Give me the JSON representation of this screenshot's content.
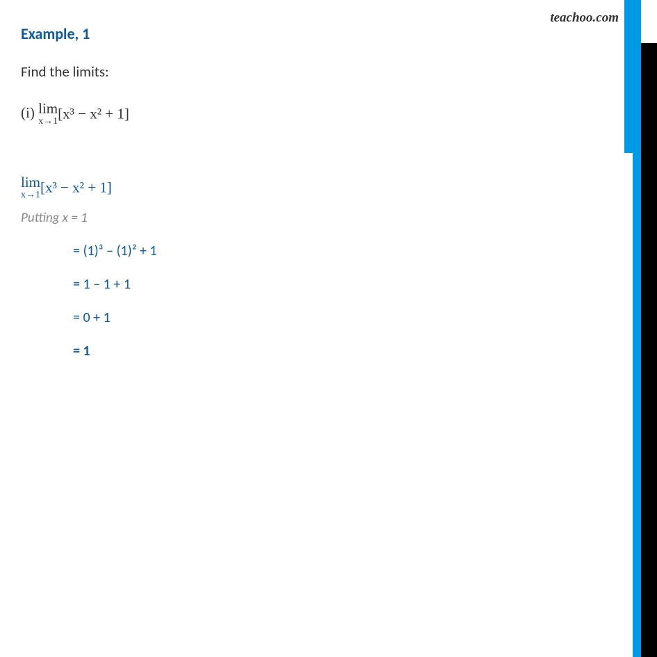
{
  "watermark": "teachoo.com",
  "heading": "Example,  1",
  "subheading": "Find the limits:",
  "problem": {
    "part_label": "(i)",
    "limit_op": "lim",
    "limit_sub": "x→1",
    "expression": "[x³ − x² + 1]"
  },
  "solution": {
    "restate_limit_op": "lim",
    "restate_limit_sub": "x→1",
    "restate_expr": "[x³ − x² + 1]",
    "putting": "Putting x = 1",
    "steps": [
      "= (1)³ – (1)² + 1",
      "= 1 – 1 + 1",
      "= 0 + 1",
      "= 1"
    ]
  },
  "colors": {
    "accent_blue": "#0f5a9e",
    "sidebar_blue": "#0099e5",
    "sidebar_black": "#000000",
    "muted_text": "#888888",
    "body_text": "#333333",
    "background": "#ffffff"
  }
}
